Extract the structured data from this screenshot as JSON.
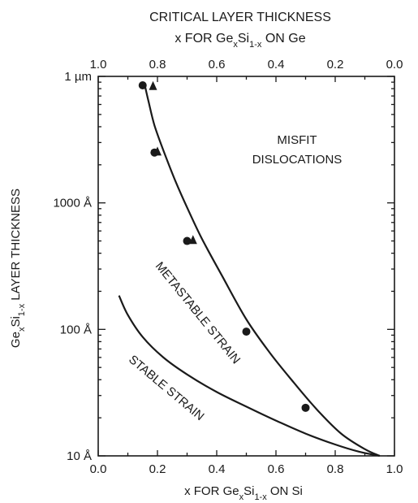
{
  "chart_data": {
    "type": "line",
    "title_line1": "CRITICAL LAYER THICKNESS",
    "title_line2": {
      "pre": "x FOR Ge",
      "sub1": "x",
      "mid": "Si",
      "sub2": "1-x",
      "post": " ON Ge"
    },
    "top_ticks": [
      "1.0",
      "0.8",
      "0.6",
      "0.4",
      "0.2",
      "0.0"
    ],
    "xlabel": {
      "pre": "x FOR Ge",
      "sub1": "x",
      "mid": "Si",
      "sub2": "1-x",
      "post": " ON Si"
    },
    "ylabel": {
      "pre": "Ge",
      "sub1": "x",
      "mid": "Si",
      "sub2": "1-x",
      "post": "  LAYER THICKNESS"
    },
    "bottom_ticks": [
      "0.0",
      "0.2",
      "0.4",
      "0.6",
      "0.8",
      "1.0"
    ],
    "xlim": [
      0,
      1
    ],
    "ylim_angstrom": [
      10,
      10000
    ],
    "y_scale": "log",
    "y_ticks": [
      {
        "value": 10000,
        "label": "1 µm"
      },
      {
        "value": 1000,
        "label": "1000 Å"
      },
      {
        "value": 100,
        "label": "100 Å"
      },
      {
        "value": 10,
        "label": "10 Å"
      }
    ],
    "regions": {
      "misfit_line1": "MISFIT",
      "misfit_line2": "DISLOCATIONS",
      "metastable": "METASTABLE STRAIN",
      "stable": "STABLE STRAIN"
    },
    "series": [
      {
        "role": "metastable-boundary",
        "points": [
          {
            "x": 0.155,
            "y": 9000
          },
          {
            "x": 0.17,
            "y": 6300
          },
          {
            "x": 0.19,
            "y": 4100
          },
          {
            "x": 0.22,
            "y": 2600
          },
          {
            "x": 0.26,
            "y": 1500
          },
          {
            "x": 0.3,
            "y": 920
          },
          {
            "x": 0.35,
            "y": 520
          },
          {
            "x": 0.42,
            "y": 260
          },
          {
            "x": 0.5,
            "y": 120
          },
          {
            "x": 0.58,
            "y": 65
          },
          {
            "x": 0.66,
            "y": 38
          },
          {
            "x": 0.74,
            "y": 23
          },
          {
            "x": 0.82,
            "y": 15
          },
          {
            "x": 0.9,
            "y": 11.3
          },
          {
            "x": 0.95,
            "y": 10
          }
        ]
      },
      {
        "role": "stable-boundary",
        "points": [
          {
            "x": 0.07,
            "y": 185
          },
          {
            "x": 0.1,
            "y": 130
          },
          {
            "x": 0.15,
            "y": 87
          },
          {
            "x": 0.22,
            "y": 60
          },
          {
            "x": 0.3,
            "y": 44
          },
          {
            "x": 0.4,
            "y": 32
          },
          {
            "x": 0.5,
            "y": 24.5
          },
          {
            "x": 0.6,
            "y": 19
          },
          {
            "x": 0.7,
            "y": 15
          },
          {
            "x": 0.8,
            "y": 12.3
          },
          {
            "x": 0.88,
            "y": 10.8
          },
          {
            "x": 0.95,
            "y": 10
          }
        ]
      },
      {
        "role": "data-circles",
        "marker": "circle",
        "points": [
          {
            "x": 0.15,
            "y": 8500
          },
          {
            "x": 0.19,
            "y": 2500
          },
          {
            "x": 0.3,
            "y": 500
          },
          {
            "x": 0.5,
            "y": 96
          },
          {
            "x": 0.7,
            "y": 24
          }
        ]
      },
      {
        "role": "data-triangles",
        "marker": "triangle",
        "points": [
          {
            "x": 0.185,
            "y": 8400
          },
          {
            "x": 0.2,
            "y": 2550
          },
          {
            "x": 0.32,
            "y": 510
          }
        ]
      }
    ]
  }
}
